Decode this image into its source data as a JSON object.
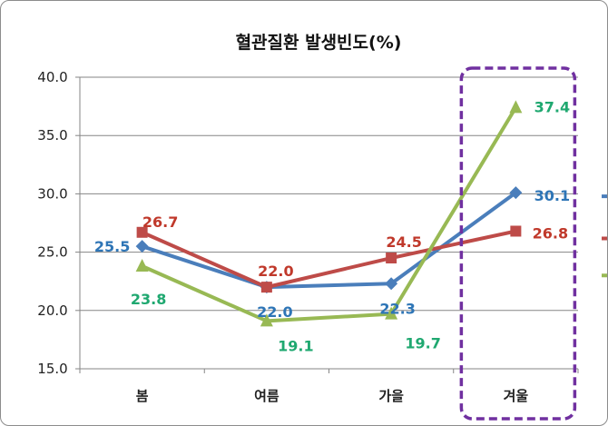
{
  "chart_data": {
    "type": "line",
    "title": "혈관질환 발생빈도(%)",
    "categories": [
      "봄",
      "여름",
      "가을",
      "겨울"
    ],
    "ylim": [
      15.0,
      40.0
    ],
    "yticks": [
      "15.0",
      "20.0",
      "25.0",
      "30.0",
      "35.0",
      "40.0"
    ],
    "grid": true,
    "legend": "right (cut off)",
    "series": [
      {
        "color": "#4a7ebb",
        "marker": "diamond",
        "values": [
          25.5,
          22.0,
          22.3,
          30.1
        ],
        "labels": [
          "25.5",
          "22.0",
          "22.3",
          "30.1"
        ]
      },
      {
        "color": "#be4b48",
        "marker": "square",
        "values": [
          26.7,
          22.0,
          24.5,
          26.8
        ],
        "labels": [
          "26.7",
          "22.0",
          "24.5",
          "26.8"
        ]
      },
      {
        "color": "#98b954",
        "marker": "triangle",
        "values": [
          23.8,
          19.1,
          19.7,
          37.4
        ],
        "labels": [
          "23.8",
          "19.1",
          "19.7",
          "37.4"
        ]
      }
    ],
    "label_colors": [
      "#2e75b6",
      "#c0392b",
      "#1fa870"
    ],
    "highlight": {
      "category": "겨울",
      "color": "#7030a0",
      "style": "dashed rounded box"
    }
  }
}
